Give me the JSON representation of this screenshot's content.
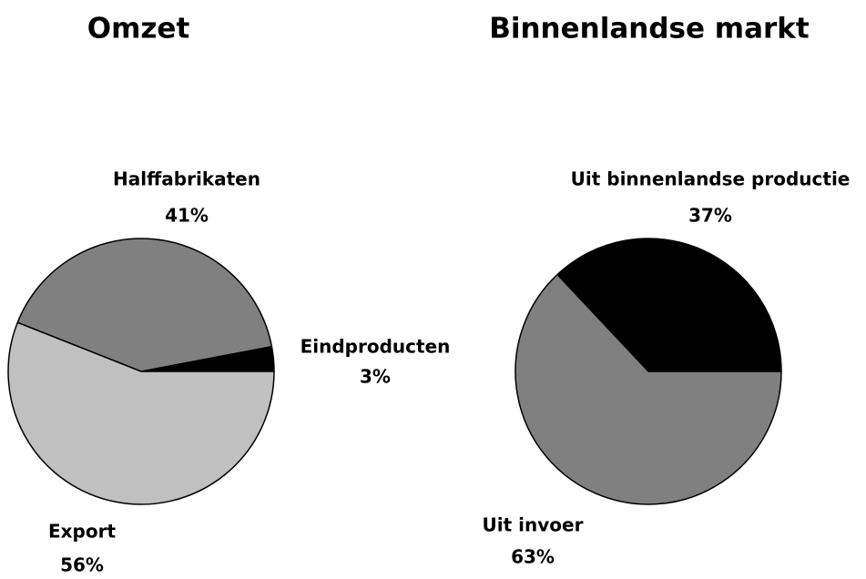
{
  "chart_data": [
    {
      "type": "pie",
      "title": "Omzet",
      "categories": [
        "Eindproducten",
        "Halffabrikaten",
        "Export"
      ],
      "values": [
        3,
        41,
        56
      ],
      "value_labels": [
        "3%",
        "41%",
        "56%"
      ],
      "colors": [
        "#000000",
        "#808080",
        "#c0c0c0"
      ]
    },
    {
      "type": "pie",
      "title": "Binnenlandse markt",
      "categories": [
        "Uit binnenlandse productie",
        "Uit invoer"
      ],
      "values": [
        37,
        63
      ],
      "value_labels": [
        "37%",
        "63%"
      ],
      "colors": [
        "#000000",
        "#808080"
      ]
    }
  ]
}
